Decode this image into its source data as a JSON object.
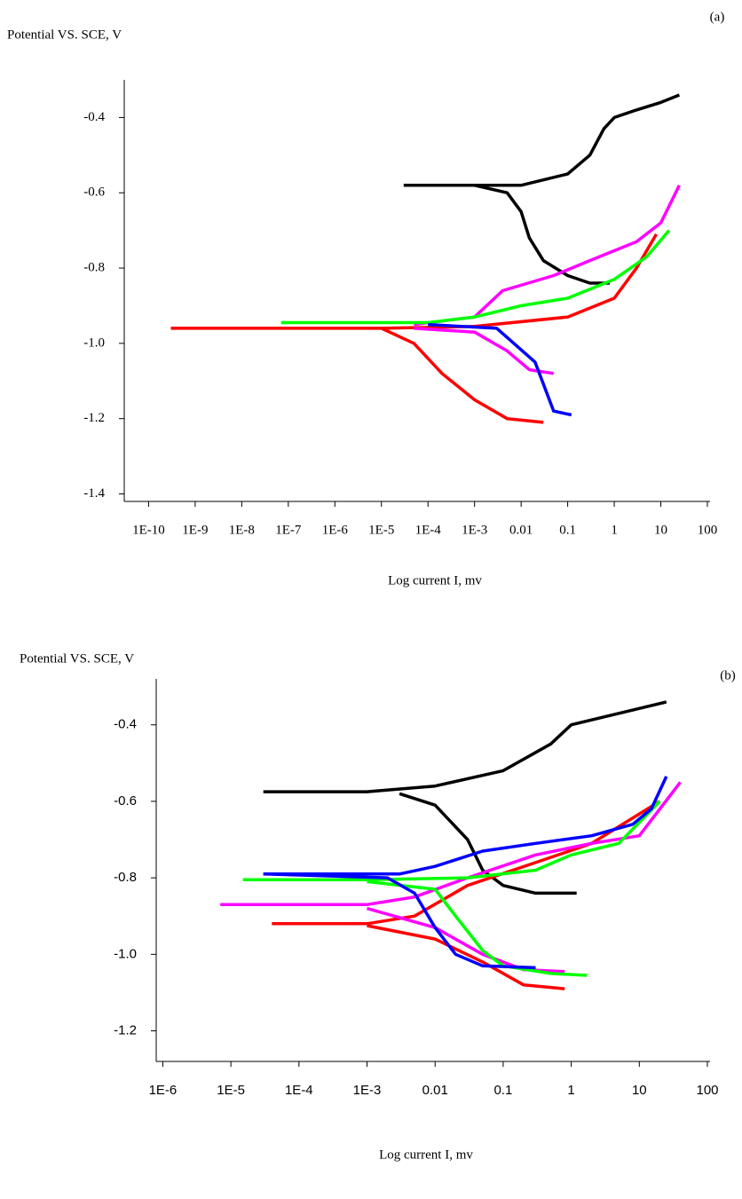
{
  "chart_data": [
    {
      "type": "line",
      "panel": "(a)",
      "y_label": "Potential VS. SCE, V",
      "x_label": "Log current I, mv",
      "xscale": "log",
      "xlim": [
        3e-11,
        100
      ],
      "ylim": [
        -1.42,
        -0.3
      ],
      "xticks": [
        {
          "value": 1e-10,
          "label": "1E-10"
        },
        {
          "value": 1e-09,
          "label": "1E-9"
        },
        {
          "value": 1e-08,
          "label": "1E-8"
        },
        {
          "value": 1e-07,
          "label": "1E-7"
        },
        {
          "value": 1e-06,
          "label": "1E-6"
        },
        {
          "value": 1e-05,
          "label": "1E-5"
        },
        {
          "value": 0.0001,
          "label": "1E-4"
        },
        {
          "value": 0.001,
          "label": "1E-3"
        },
        0.01,
        0.1,
        1,
        10,
        100
      ],
      "yticks": [
        -1.4,
        -1.2,
        {
          "value": -1,
          "label": "-1.0"
        },
        -0.8,
        -0.6,
        -0.4
      ],
      "series": [
        {
          "color": "#000000",
          "x": [
            3e-05,
            0.01,
            0.1,
            0.3,
            0.6,
            1,
            3,
            10,
            25
          ],
          "values": [
            -0.58,
            -0.58,
            -0.55,
            -0.5,
            -0.43,
            -0.4,
            -0.38,
            -0.36,
            -0.34
          ]
        },
        {
          "color": "#000000",
          "x": [
            0.001,
            0.005,
            0.01,
            0.015,
            0.03,
            0.1,
            0.3,
            0.8
          ],
          "values": [
            -0.58,
            -0.6,
            -0.65,
            -0.72,
            -0.78,
            -0.82,
            -0.84,
            -0.84
          ]
        },
        {
          "color": "#ff0000",
          "x": [
            3e-10,
            1e-05,
            0.001,
            0.1,
            1,
            3,
            8
          ],
          "values": [
            -0.96,
            -0.96,
            -0.955,
            -0.93,
            -0.88,
            -0.8,
            -0.71
          ]
        },
        {
          "color": "#ff0000",
          "x": [
            1e-05,
            5e-05,
            0.0002,
            0.001,
            0.005,
            0.03
          ],
          "values": [
            -0.96,
            -1.0,
            -1.08,
            -1.15,
            -1.2,
            -1.21
          ]
        },
        {
          "color": "#ff00ff",
          "x": [
            5e-05,
            0.001,
            0.004,
            0.05,
            0.3,
            3,
            10,
            25
          ],
          "values": [
            -0.95,
            -0.93,
            -0.86,
            -0.82,
            -0.78,
            -0.73,
            -0.68,
            -0.58
          ]
        },
        {
          "color": "#ff00ff",
          "x": [
            5e-05,
            0.001,
            0.005,
            0.015,
            0.05
          ],
          "values": [
            -0.96,
            -0.97,
            -1.02,
            -1.07,
            -1.08
          ]
        },
        {
          "color": "#00ff00",
          "x": [
            7e-08,
            0.0001,
            0.001,
            0.01,
            0.1,
            1,
            5,
            15
          ],
          "values": [
            -0.945,
            -0.945,
            -0.93,
            -0.9,
            -0.88,
            -0.83,
            -0.77,
            -0.7
          ]
        },
        {
          "color": "#0000ff",
          "x": [
            0.0001,
            0.003,
            0.02,
            0.05,
            0.12
          ],
          "values": [
            -0.95,
            -0.96,
            -1.05,
            -1.18,
            -1.19
          ]
        }
      ]
    },
    {
      "type": "line",
      "panel": "(b)",
      "y_label": "Potential VS. SCE, V",
      "x_label": "Log current I, mv",
      "xscale": "log",
      "xlim": [
        8e-07,
        100
      ],
      "ylim": [
        -1.28,
        -0.28
      ],
      "xticks": [
        {
          "value": 1e-06,
          "label": "1E-6"
        },
        {
          "value": 1e-05,
          "label": "1E-5"
        },
        {
          "value": 0.0001,
          "label": "1E-4"
        },
        {
          "value": 0.001,
          "label": "1E-3"
        },
        0.01,
        0.1,
        1,
        10,
        100
      ],
      "yticks": [
        -1.2,
        {
          "value": -1,
          "label": "-1.0"
        },
        -0.8,
        -0.6,
        -0.4
      ],
      "series": [
        {
          "color": "#000000",
          "x": [
            3e-05,
            0.001,
            0.01,
            0.1,
            0.5,
            1,
            5,
            25
          ],
          "values": [
            -0.575,
            -0.575,
            -0.56,
            -0.52,
            -0.45,
            -0.4,
            -0.37,
            -0.34
          ]
        },
        {
          "color": "#000000",
          "x": [
            0.003,
            0.01,
            0.03,
            0.05,
            0.1,
            0.3,
            1.2
          ],
          "values": [
            -0.58,
            -0.61,
            -0.7,
            -0.78,
            -0.82,
            -0.84,
            -0.84
          ]
        },
        {
          "color": "#ff0000",
          "x": [
            4e-05,
            0.001,
            0.005,
            0.03,
            0.3,
            2,
            20
          ],
          "values": [
            -0.92,
            -0.92,
            -0.9,
            -0.82,
            -0.76,
            -0.71,
            -0.6
          ]
        },
        {
          "color": "#ff0000",
          "x": [
            0.001,
            0.01,
            0.05,
            0.2,
            0.8
          ],
          "values": [
            -0.925,
            -0.96,
            -1.02,
            -1.08,
            -1.09
          ]
        },
        {
          "color": "#ff00ff",
          "x": [
            7e-06,
            0.001,
            0.005,
            0.03,
            0.3,
            2,
            10,
            40
          ],
          "values": [
            -0.87,
            -0.87,
            -0.85,
            -0.8,
            -0.74,
            -0.71,
            -0.69,
            -0.55
          ]
        },
        {
          "color": "#ff00ff",
          "x": [
            0.001,
            0.01,
            0.05,
            0.2,
            0.8
          ],
          "values": [
            -0.88,
            -0.93,
            -1.0,
            -1.04,
            -1.045
          ]
        },
        {
          "color": "#00ff00",
          "x": [
            1.5e-05,
            0.001,
            0.03,
            0.3,
            1,
            5,
            20
          ],
          "values": [
            -0.805,
            -0.805,
            -0.8,
            -0.78,
            -0.74,
            -0.71,
            -0.6
          ]
        },
        {
          "color": "#00ff00",
          "x": [
            0.001,
            0.01,
            0.02,
            0.05,
            0.1,
            0.5,
            1.7
          ],
          "values": [
            -0.81,
            -0.83,
            -0.9,
            -0.99,
            -1.03,
            -1.05,
            -1.055
          ]
        },
        {
          "color": "#0000ff",
          "x": [
            3e-05,
            0.003,
            0.01,
            0.05,
            0.3,
            2,
            8,
            15,
            25
          ],
          "values": [
            -0.79,
            -0.79,
            -0.77,
            -0.73,
            -0.71,
            -0.69,
            -0.66,
            -0.62,
            -0.535
          ]
        },
        {
          "color": "#0000ff",
          "x": [
            3e-05,
            0.002,
            0.005,
            0.01,
            0.02,
            0.05,
            0.3
          ],
          "values": [
            -0.79,
            -0.8,
            -0.84,
            -0.93,
            -1.0,
            -1.03,
            -1.035
          ]
        }
      ]
    }
  ]
}
